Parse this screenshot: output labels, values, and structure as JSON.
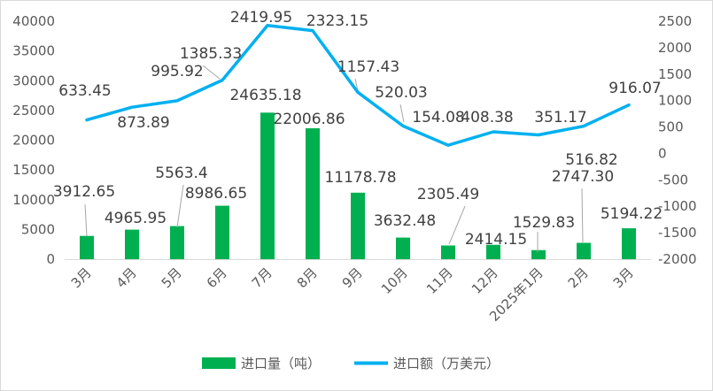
{
  "chart_data": {
    "type": "bar+line",
    "categories": [
      "3月",
      "4月",
      "5月",
      "6月",
      "7月",
      "8月",
      "9月",
      "10月",
      "11月",
      "12月",
      "2025年1月",
      "2月",
      "3月"
    ],
    "series": [
      {
        "name": "进口量（吨）",
        "type": "bar",
        "axis": "left",
        "color": "#00b050",
        "values": [
          3912.65,
          4965.95,
          5563.4,
          8986.65,
          24635.18,
          22006.86,
          11178.78,
          3632.48,
          2305.49,
          2414.15,
          1529.83,
          2747.3,
          5194.22
        ],
        "labels": [
          "3912.65",
          "4965.95",
          "5563.4",
          "8986.65",
          "24635.18",
          "22006.86",
          "11178.78",
          "3632.48",
          "2305.49",
          "2414.15",
          "1529.83",
          "2747.30",
          "5194.22"
        ]
      },
      {
        "name": "进口额（万美元）",
        "type": "line",
        "axis": "right",
        "color": "#00b0f0",
        "values": [
          633.45,
          873.89,
          995.92,
          1385.33,
          2419.95,
          2323.15,
          1157.43,
          520.03,
          154.08,
          408.38,
          351.17,
          516.82,
          916.07
        ],
        "labels": [
          "633.45",
          "873.89",
          "995.92",
          "1385.33",
          "2419.95",
          "2323.15",
          "1157.43",
          "520.03",
          "154.08",
          "408.38",
          "351.17",
          "516.82",
          "916.07"
        ]
      }
    ],
    "y_left": {
      "min": 0,
      "max": 40000,
      "ticks": [
        "0",
        "5000",
        "10000",
        "15000",
        "20000",
        "25000",
        "30000",
        "35000",
        "40000"
      ]
    },
    "y_right": {
      "min": -2000,
      "max": 2500,
      "ticks": [
        "-2000",
        "-1500",
        "-1000",
        "-500",
        "0",
        "500",
        "1000",
        "1500",
        "2000",
        "2500"
      ]
    },
    "grid": false,
    "legend_position": "bottom"
  }
}
